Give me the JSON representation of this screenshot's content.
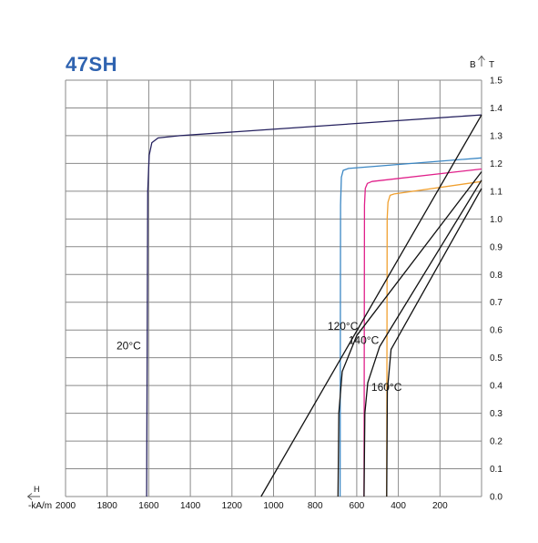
{
  "chart_data": {
    "type": "line",
    "title": "47SH",
    "x_axis": {
      "label": "H",
      "unit": "-kA/m",
      "reversed": true,
      "range": [
        2000,
        0
      ],
      "ticks": [
        2000,
        1800,
        1600,
        1400,
        1200,
        1000,
        800,
        600,
        400,
        200
      ],
      "tick_labels": [
        "2000",
        "1800",
        "1600",
        "1400",
        "1200",
        "1000",
        "800",
        "600",
        "400",
        "200"
      ]
    },
    "y_axis": {
      "label_b": "B",
      "label_t": "T",
      "position": "right",
      "range": [
        0,
        1.5
      ],
      "ticks": [
        0,
        0.1,
        0.2,
        0.3,
        0.4,
        0.5,
        0.6,
        0.7,
        0.8,
        0.9,
        1.0,
        1.1,
        1.2,
        1.3,
        1.4,
        1.5
      ],
      "tick_labels": [
        "0.0",
        "0.1",
        "0.2",
        "0.3",
        "0.4",
        "0.5",
        "0.6",
        "0.7",
        "0.8",
        "0.9",
        "1.0",
        "1.1",
        "1.2",
        "1.3",
        "1.4",
        "1.5"
      ]
    },
    "grid": true,
    "series": [
      {
        "name": "20°C",
        "kind": "J",
        "color": "#24205e",
        "points": [
          [
            1610,
            0
          ],
          [
            1605,
            1.1
          ],
          [
            1598,
            1.23
          ],
          [
            1585,
            1.275
          ],
          [
            1555,
            1.292
          ],
          [
            1450,
            1.3
          ],
          [
            0,
            1.375
          ]
        ]
      },
      {
        "name": "120°C",
        "kind": "J",
        "color": "#3b87c4",
        "points": [
          [
            680,
            0
          ],
          [
            678,
            1.05
          ],
          [
            674,
            1.15
          ],
          [
            665,
            1.175
          ],
          [
            640,
            1.182
          ],
          [
            0,
            1.22
          ]
        ]
      },
      {
        "name": "140°C",
        "kind": "J",
        "color": "#e0208a",
        "points": [
          [
            565,
            0
          ],
          [
            563,
            1.05
          ],
          [
            559,
            1.11
          ],
          [
            549,
            1.128
          ],
          [
            527,
            1.135
          ],
          [
            0,
            1.18
          ]
        ]
      },
      {
        "name": "160°C",
        "kind": "J",
        "color": "#f0a030",
        "points": [
          [
            456,
            0
          ],
          [
            454,
            1.0
          ],
          [
            450,
            1.06
          ],
          [
            440,
            1.085
          ],
          [
            420,
            1.09
          ],
          [
            0,
            1.135
          ]
        ]
      },
      {
        "name": "20°C",
        "kind": "B",
        "color": "#111111",
        "points": [
          [
            1060,
            0
          ],
          [
            0,
            1.375
          ]
        ]
      },
      {
        "name": "120°C",
        "kind": "B",
        "color": "#111111",
        "points": [
          [
            690,
            0
          ],
          [
            686,
            0.3
          ],
          [
            670,
            0.45
          ],
          [
            600,
            0.58
          ],
          [
            0,
            1.17
          ]
        ]
      },
      {
        "name": "140°C",
        "kind": "B",
        "color": "#111111",
        "points": [
          [
            565,
            0
          ],
          [
            561,
            0.3
          ],
          [
            547,
            0.41
          ],
          [
            490,
            0.54
          ],
          [
            0,
            1.14
          ]
        ]
      },
      {
        "name": "160°C",
        "kind": "B",
        "color": "#111111",
        "points": [
          [
            456,
            0
          ],
          [
            453,
            0.38
          ],
          [
            435,
            0.53
          ],
          [
            0,
            1.11
          ]
        ]
      }
    ],
    "annotations": [
      {
        "text": "20°C",
        "x": 1755,
        "y": 0.53
      },
      {
        "text": "120°C",
        "x": 740,
        "y": 0.6
      },
      {
        "text": "140°C",
        "x": 640,
        "y": 0.55
      },
      {
        "text": "160°C",
        "x": 530,
        "y": 0.38
      }
    ]
  }
}
